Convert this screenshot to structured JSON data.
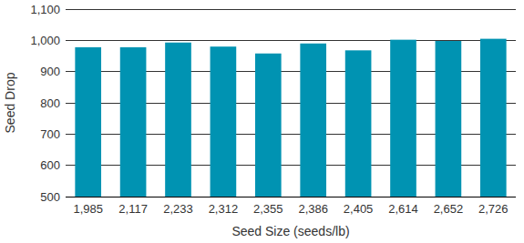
{
  "chart_data": {
    "type": "bar",
    "x_label": "Seed Size (seeds/lb)",
    "y_label": "Seed Drop",
    "categories": [
      "1,985",
      "2,117",
      "2,233",
      "2,312",
      "2,355",
      "2,386",
      "2,405",
      "2,614",
      "2,652",
      "2,726"
    ],
    "values": [
      978,
      978,
      993,
      980,
      958,
      990,
      968,
      1002,
      998,
      1005
    ],
    "color": "#0093b2",
    "ylim": [
      500,
      1100
    ],
    "yticks": [
      500,
      600,
      700,
      800,
      900,
      {
        "value": 1000,
        "label": "1,000"
      },
      {
        "value": 1100,
        "label": "1,100"
      }
    ],
    "grid": true
  }
}
